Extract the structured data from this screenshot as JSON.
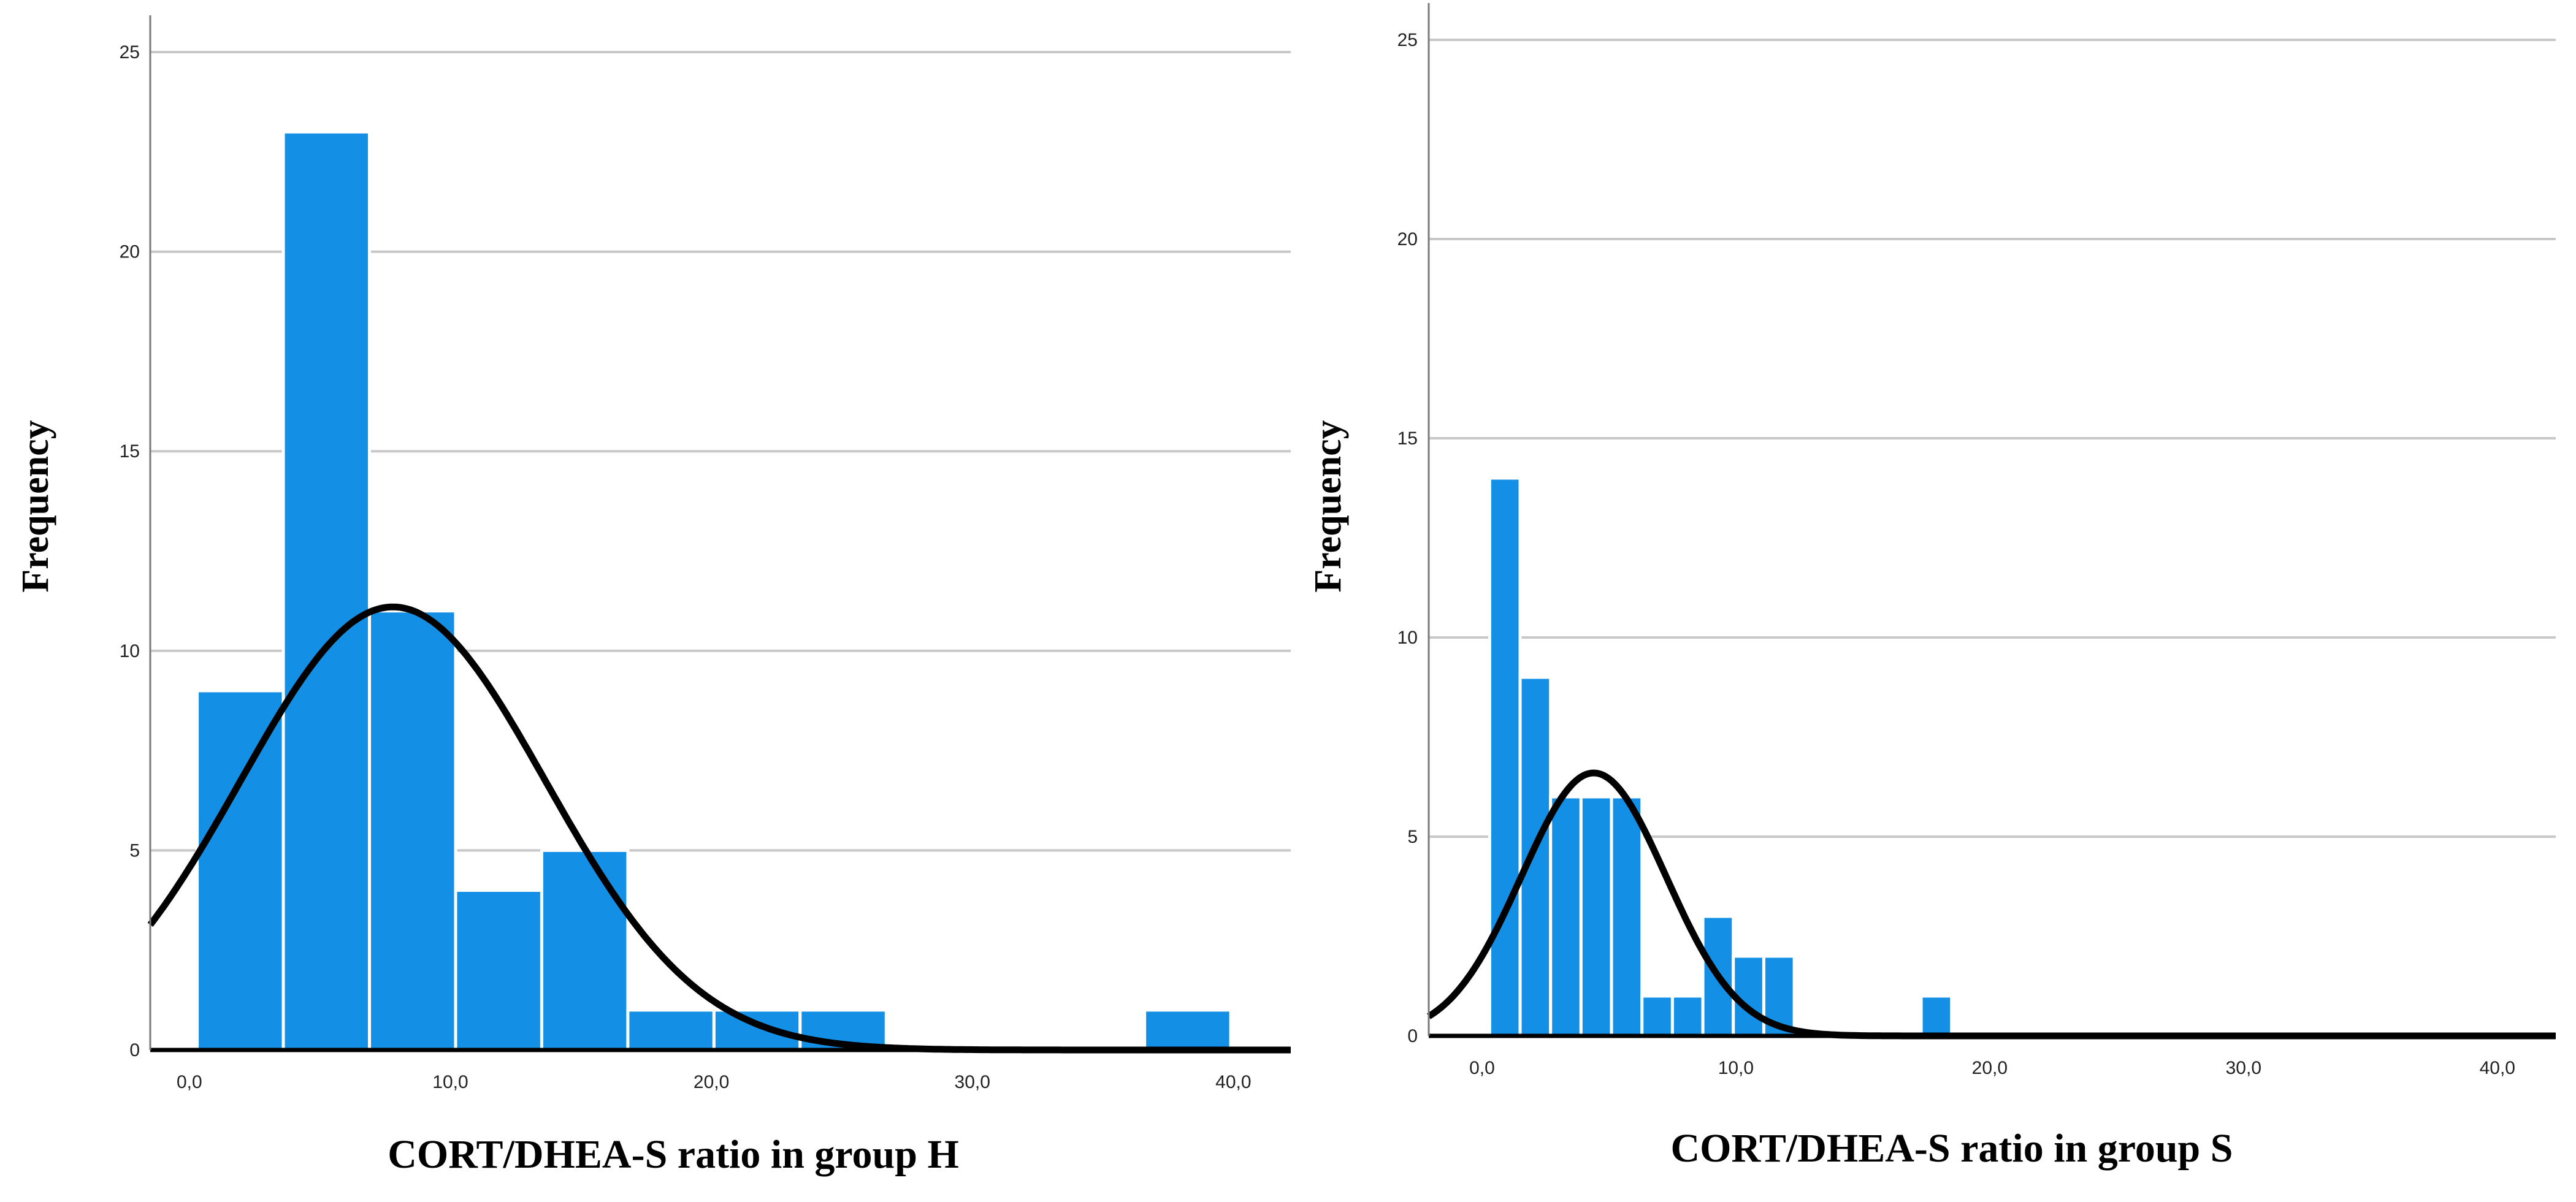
{
  "chart_data": [
    {
      "type": "bar",
      "title": "",
      "xlabel": "CORT/DHEA-S ratio in group H",
      "ylabel": "Frequency",
      "xlim": [
        -1.5,
        42.2
      ],
      "ylim": [
        0,
        25
      ],
      "x_ticks": [
        0,
        10,
        20,
        30,
        40
      ],
      "x_tick_labels": [
        "0,0",
        "10,0",
        "20,0",
        "30,0",
        "40,0"
      ],
      "y_ticks": [
        0,
        5,
        10,
        15,
        20,
        25
      ],
      "y_tick_labels": [
        "0",
        "5",
        "10",
        "15",
        "20",
        "25"
      ],
      "grid": true,
      "bins": [
        {
          "start": 0.3,
          "end": 3.6,
          "value": 9
        },
        {
          "start": 3.6,
          "end": 6.9,
          "value": 23
        },
        {
          "start": 6.9,
          "end": 10.2,
          "value": 11
        },
        {
          "start": 10.2,
          "end": 13.5,
          "value": 4
        },
        {
          "start": 13.5,
          "end": 16.8,
          "value": 5
        },
        {
          "start": 16.8,
          "end": 20.1,
          "value": 1
        },
        {
          "start": 20.1,
          "end": 23.4,
          "value": 1
        },
        {
          "start": 23.4,
          "end": 26.7,
          "value": 1
        },
        {
          "start": 36.6,
          "end": 39.9,
          "value": 1
        }
      ],
      "normal_curve": {
        "mean": 7.8,
        "sd": 5.85,
        "peak": 11.1
      },
      "colors": {
        "bar": "#1390e6",
        "bar_edge": "#ffffff",
        "curve": "#000000",
        "grid": "#c8c8c8",
        "axis": "#000000"
      }
    },
    {
      "type": "bar",
      "title": "",
      "xlabel": "CORT/DHEA-S ratio in group S",
      "ylabel": "Frequency",
      "xlim": [
        -2.1,
        42.3
      ],
      "ylim": [
        0,
        25
      ],
      "x_ticks": [
        0,
        10,
        20,
        30,
        40
      ],
      "x_tick_labels": [
        "0,0",
        "10,0",
        "20,0",
        "30,0",
        "40,0"
      ],
      "y_ticks": [
        0,
        5,
        10,
        15,
        20,
        25
      ],
      "y_tick_labels": [
        "0",
        "5",
        "10",
        "15",
        "20",
        "25"
      ],
      "grid": true,
      "bins": [
        {
          "start": 0.3,
          "end": 1.5,
          "value": 14
        },
        {
          "start": 1.5,
          "end": 2.7,
          "value": 9
        },
        {
          "start": 2.7,
          "end": 3.9,
          "value": 6
        },
        {
          "start": 3.9,
          "end": 5.1,
          "value": 6
        },
        {
          "start": 5.1,
          "end": 6.3,
          "value": 6
        },
        {
          "start": 6.3,
          "end": 7.5,
          "value": 1
        },
        {
          "start": 7.5,
          "end": 8.7,
          "value": 1
        },
        {
          "start": 8.7,
          "end": 9.9,
          "value": 3
        },
        {
          "start": 9.9,
          "end": 11.1,
          "value": 2
        },
        {
          "start": 11.1,
          "end": 12.3,
          "value": 2
        },
        {
          "start": 17.3,
          "end": 18.5,
          "value": 1
        }
      ],
      "normal_curve": {
        "mean": 4.4,
        "sd": 2.85,
        "peak": 6.6
      },
      "colors": {
        "bar": "#1390e6",
        "bar_edge": "#ffffff",
        "curve": "#000000",
        "grid": "#c8c8c8",
        "axis": "#000000"
      }
    }
  ]
}
